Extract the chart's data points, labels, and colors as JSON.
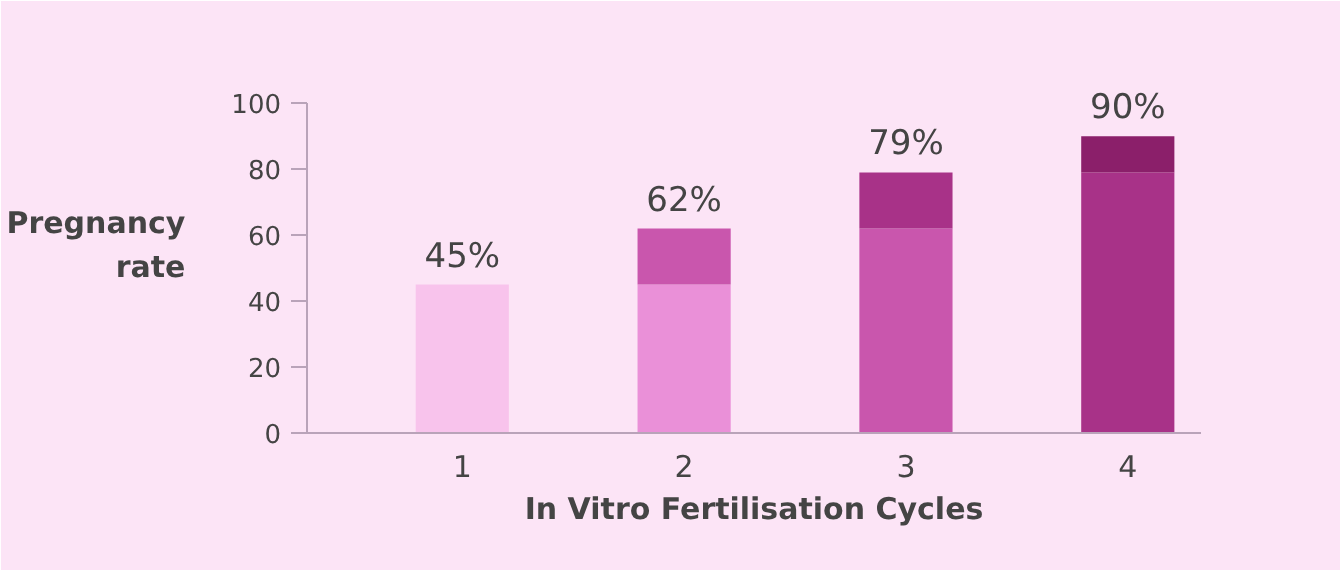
{
  "chart_data": {
    "type": "bar",
    "stacked": true,
    "categories": [
      "1",
      "2",
      "3",
      "4"
    ],
    "series": [
      {
        "values": [
          45,
          45,
          62,
          79
        ],
        "colors": [
          "#f8c3ec",
          "#ea90d8",
          "#c956ad",
          "#a83288"
        ]
      },
      {
        "values": [
          null,
          17,
          17,
          11
        ],
        "colors": [
          "#c956ad",
          "#c956ad",
          "#a83288",
          "#8b1f6a"
        ]
      }
    ],
    "totals": [
      "45%",
      "62%",
      "79%",
      "90%"
    ],
    "xlabel": "In Vitro Fertilisation Cycles",
    "ylabel": "Pregnancy rate",
    "ylim": [
      0,
      100
    ],
    "yticks": [
      0,
      20,
      40,
      60,
      80,
      100
    ],
    "grid": false
  }
}
